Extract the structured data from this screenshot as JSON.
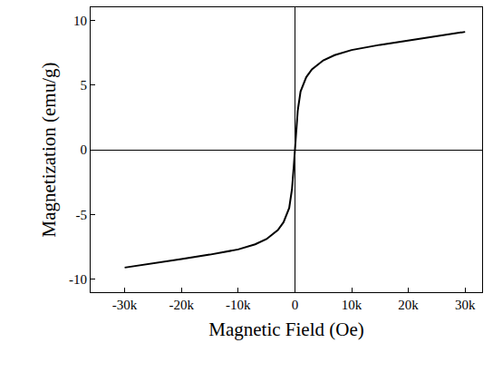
{
  "chart_data": {
    "type": "line",
    "x_label": "Magnetic Field (Oe)",
    "y_label": "Magnetization (emu/g)",
    "x": [
      -30000,
      -25000,
      -20000,
      -15000,
      -10000,
      -7000,
      -5000,
      -3000,
      -2000,
      -1000,
      -500,
      -200,
      0,
      200,
      500,
      1000,
      2000,
      3000,
      5000,
      7000,
      10000,
      15000,
      20000,
      25000,
      30000
    ],
    "values": [
      -9.1,
      -8.8,
      -8.45,
      -8.1,
      -7.7,
      -7.3,
      -6.9,
      -6.2,
      -5.6,
      -4.5,
      -3.0,
      -1.3,
      0,
      1.3,
      3.0,
      4.5,
      5.6,
      6.2,
      6.9,
      7.3,
      7.7,
      8.1,
      8.45,
      8.8,
      9.1
    ],
    "color": "#000000",
    "xlim": [
      -36000,
      33000
    ],
    "ylim": [
      -11,
      11
    ],
    "xticks": [
      {
        "value": -30000,
        "label": "-30k"
      },
      {
        "value": -20000,
        "label": "-20k"
      },
      {
        "value": -10000,
        "label": "-10k"
      },
      0,
      {
        "value": 10000,
        "label": "10k"
      },
      {
        "value": 20000,
        "label": "20k"
      },
      {
        "value": 30000,
        "label": "30k"
      }
    ],
    "yticks": [
      -10,
      -5,
      0,
      5,
      10
    ],
    "grid": false
  }
}
